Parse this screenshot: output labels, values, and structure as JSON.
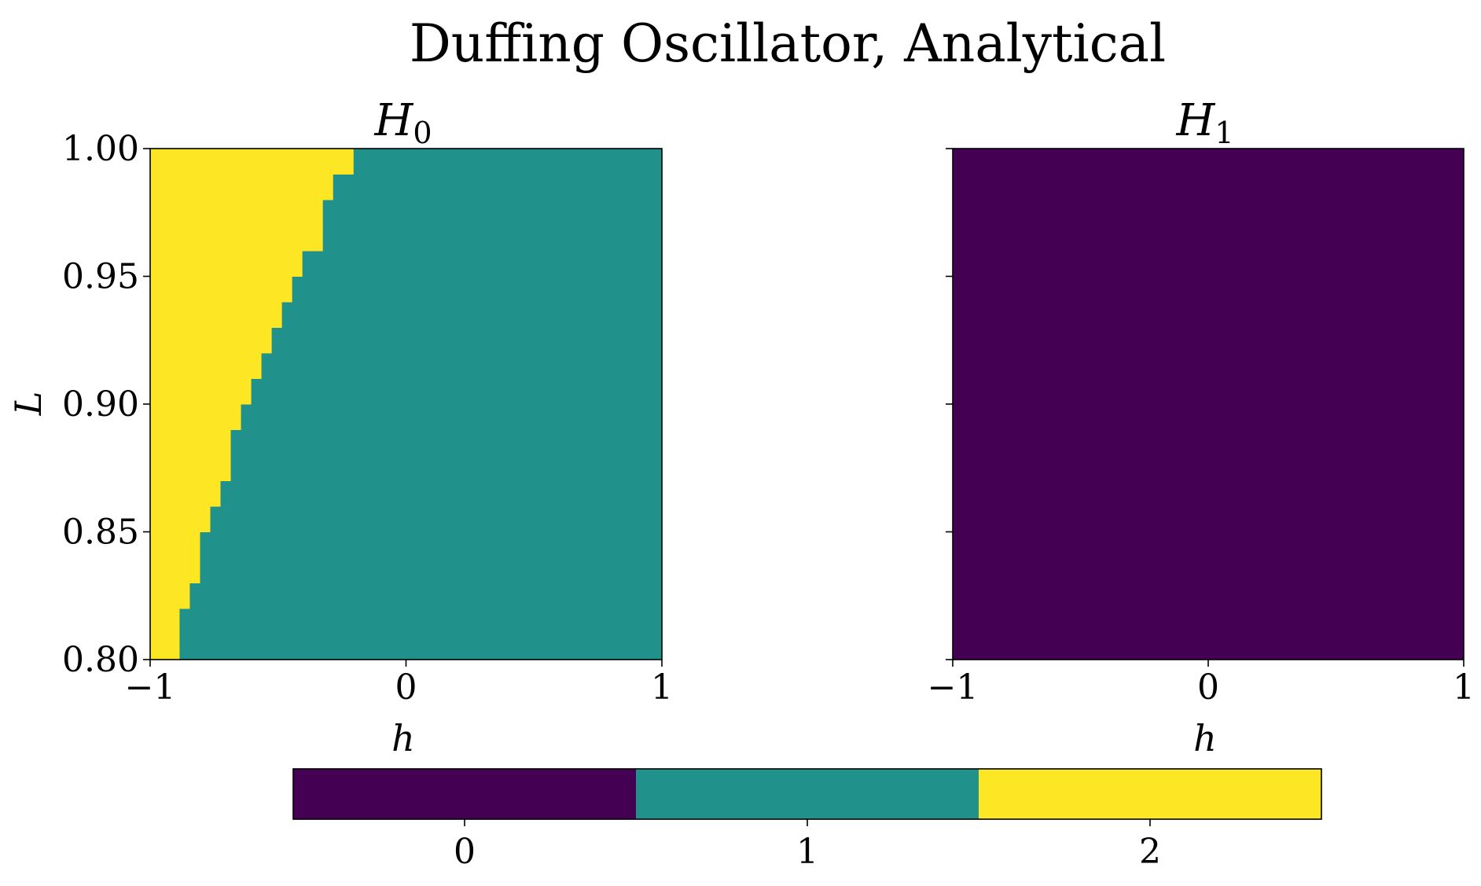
{
  "figure": {
    "title": "Duffing Oscillator, Analytical"
  },
  "colors": {
    "value_0": "#440154",
    "value_1": "#21918c",
    "value_2": "#fde725",
    "axis": "#000000"
  },
  "chart_data": [
    {
      "type": "heatmap",
      "title_base": "H",
      "title_sub": "0",
      "xlabel": "h",
      "ylabel": "L",
      "xlim": [
        -1,
        1
      ],
      "ylim": [
        0.8,
        1.0
      ],
      "x_ticks": [
        {
          "value": -1,
          "label": "−1"
        },
        {
          "value": 0,
          "label": "0"
        },
        {
          "value": 1,
          "label": "1"
        }
      ],
      "y_ticks": [
        {
          "value": 0.8,
          "label": "0.80"
        },
        {
          "value": 0.85,
          "label": "0.85"
        },
        {
          "value": 0.9,
          "label": "0.90"
        },
        {
          "value": 0.95,
          "label": "0.95"
        },
        {
          "value": 1.0,
          "label": "1.00"
        }
      ],
      "grid_cells_y": 20,
      "y_cell_size": 0.01,
      "background_value": 1,
      "region_value": 2,
      "region_description_boundary_h": [
        -0.885,
        -0.885,
        -0.845,
        -0.805,
        -0.805,
        -0.765,
        -0.725,
        -0.685,
        -0.685,
        -0.645,
        -0.605,
        -0.565,
        -0.525,
        -0.485,
        -0.445,
        -0.405,
        -0.325,
        -0.325,
        -0.285,
        -0.205,
        -0.065
      ]
    },
    {
      "type": "heatmap",
      "title_base": "H",
      "title_sub": "1",
      "xlabel": "h",
      "ylabel": "",
      "xlim": [
        -1,
        1
      ],
      "ylim": [
        0.8,
        1.0
      ],
      "x_ticks": [
        {
          "value": -1,
          "label": "−1"
        },
        {
          "value": 0,
          "label": "0"
        },
        {
          "value": 1,
          "label": "1"
        }
      ],
      "y_ticks": [
        {
          "value": 0.8,
          "label": ""
        },
        {
          "value": 0.85,
          "label": ""
        },
        {
          "value": 0.9,
          "label": ""
        },
        {
          "value": 0.95,
          "label": ""
        },
        {
          "value": 1.0,
          "label": ""
        }
      ],
      "background_value": 0
    }
  ],
  "colorbar": {
    "values": [
      0,
      1,
      2
    ],
    "labels": [
      "0",
      "1",
      "2"
    ]
  }
}
